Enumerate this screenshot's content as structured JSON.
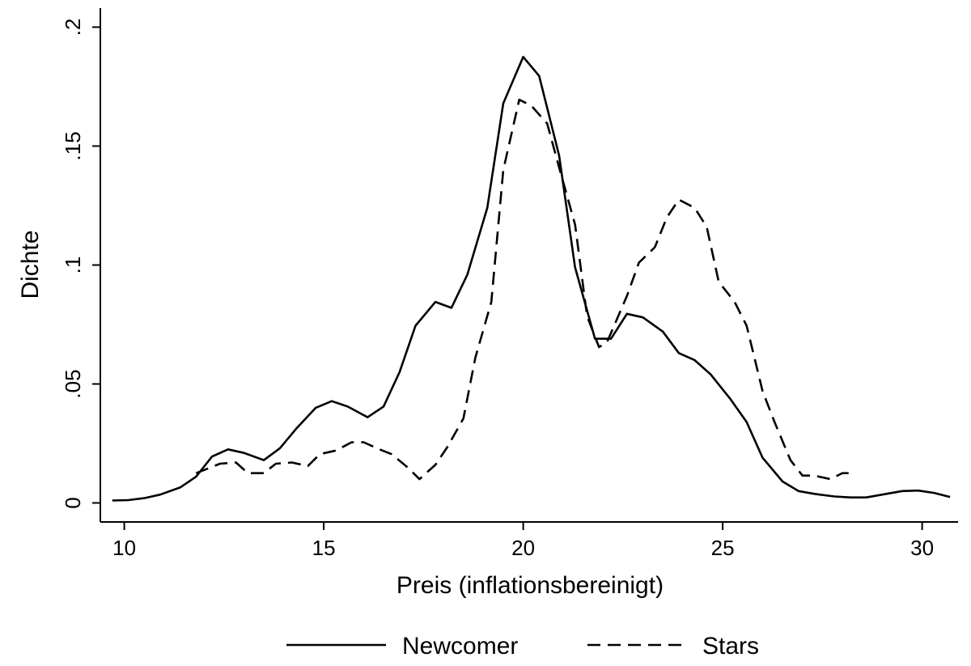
{
  "chart_data": {
    "type": "line",
    "xlabel": "Preis (inflationsbereinigt)",
    "ylabel": "Dichte",
    "xlim": [
      9.4,
      30.9
    ],
    "ylim": [
      -0.008,
      0.208
    ],
    "xticks": [
      {
        "value": 10,
        "label": "10"
      },
      {
        "value": 15,
        "label": "15"
      },
      {
        "value": 20,
        "label": "20"
      },
      {
        "value": 25,
        "label": "25"
      },
      {
        "value": 30,
        "label": "30"
      }
    ],
    "yticks": [
      {
        "value": 0,
        "label": "0"
      },
      {
        "value": 0.05,
        "label": ".05"
      },
      {
        "value": 0.1,
        "label": ".1"
      },
      {
        "value": 0.15,
        "label": ".15"
      },
      {
        "value": 0.2,
        "label": ".2"
      }
    ],
    "grid": false,
    "legend_position": "bottom",
    "series": [
      {
        "name": "Newcomer",
        "dash": "solid",
        "color": "#000000",
        "points": [
          [
            9.7,
            0.001
          ],
          [
            10.1,
            0.0012
          ],
          [
            10.5,
            0.002
          ],
          [
            10.9,
            0.0035
          ],
          [
            11.4,
            0.0065
          ],
          [
            11.8,
            0.011
          ],
          [
            12.2,
            0.0195
          ],
          [
            12.6,
            0.0225
          ],
          [
            13.0,
            0.021
          ],
          [
            13.5,
            0.018
          ],
          [
            13.9,
            0.023
          ],
          [
            14.3,
            0.031
          ],
          [
            14.8,
            0.04
          ],
          [
            15.2,
            0.0428
          ],
          [
            15.6,
            0.0405
          ],
          [
            16.1,
            0.036
          ],
          [
            16.5,
            0.0405
          ],
          [
            16.9,
            0.055
          ],
          [
            17.3,
            0.0745
          ],
          [
            17.8,
            0.0845
          ],
          [
            18.2,
            0.082
          ],
          [
            18.6,
            0.096
          ],
          [
            19.1,
            0.124
          ],
          [
            19.5,
            0.168
          ],
          [
            20.0,
            0.1875
          ],
          [
            20.4,
            0.1795
          ],
          [
            20.9,
            0.146
          ],
          [
            21.3,
            0.099
          ],
          [
            21.8,
            0.069
          ],
          [
            22.2,
            0.069
          ],
          [
            22.6,
            0.0795
          ],
          [
            23.0,
            0.078
          ],
          [
            23.5,
            0.072
          ],
          [
            23.9,
            0.063
          ],
          [
            24.3,
            0.06
          ],
          [
            24.7,
            0.054
          ],
          [
            25.2,
            0.0435
          ],
          [
            25.6,
            0.034
          ],
          [
            26.0,
            0.019
          ],
          [
            26.5,
            0.009
          ],
          [
            26.9,
            0.005
          ],
          [
            27.3,
            0.0038
          ],
          [
            27.8,
            0.0027
          ],
          [
            28.2,
            0.0023
          ],
          [
            28.6,
            0.0023
          ],
          [
            29.1,
            0.0038
          ],
          [
            29.5,
            0.005
          ],
          [
            29.9,
            0.0052
          ],
          [
            30.3,
            0.0042
          ],
          [
            30.7,
            0.0025
          ]
        ]
      },
      {
        "name": "Stars",
        "dash": "dashed",
        "color": "#000000",
        "points": [
          [
            11.8,
            0.0125
          ],
          [
            12.1,
            0.0145
          ],
          [
            12.4,
            0.0165
          ],
          [
            12.8,
            0.017
          ],
          [
            13.1,
            0.0125
          ],
          [
            13.5,
            0.0125
          ],
          [
            13.8,
            0.0165
          ],
          [
            14.2,
            0.017
          ],
          [
            14.6,
            0.0155
          ],
          [
            14.9,
            0.0205
          ],
          [
            15.3,
            0.022
          ],
          [
            15.7,
            0.0255
          ],
          [
            16.0,
            0.0255
          ],
          [
            16.4,
            0.0225
          ],
          [
            16.7,
            0.0205
          ],
          [
            17.1,
            0.015
          ],
          [
            17.4,
            0.01
          ],
          [
            17.8,
            0.016
          ],
          [
            18.1,
            0.0235
          ],
          [
            18.5,
            0.0355
          ],
          [
            18.8,
            0.061
          ],
          [
            19.2,
            0.0845
          ],
          [
            19.5,
            0.14
          ],
          [
            19.9,
            0.1695
          ],
          [
            20.2,
            0.167
          ],
          [
            20.6,
            0.1595
          ],
          [
            20.9,
            0.141
          ],
          [
            21.3,
            0.117
          ],
          [
            21.6,
            0.0785
          ],
          [
            21.9,
            0.0655
          ],
          [
            22.1,
            0.0675
          ],
          [
            22.6,
            0.087
          ],
          [
            22.9,
            0.101
          ],
          [
            23.3,
            0.1075
          ],
          [
            23.6,
            0.12
          ],
          [
            23.9,
            0.1275
          ],
          [
            24.3,
            0.124
          ],
          [
            24.6,
            0.116
          ],
          [
            24.9,
            0.093
          ],
          [
            25.3,
            0.0845
          ],
          [
            25.6,
            0.0745
          ],
          [
            26.0,
            0.047
          ],
          [
            26.3,
            0.034
          ],
          [
            26.7,
            0.018
          ],
          [
            27.0,
            0.0115
          ],
          [
            27.3,
            0.0115
          ],
          [
            27.7,
            0.01
          ],
          [
            28.0,
            0.0125
          ],
          [
            28.2,
            0.0125
          ]
        ]
      }
    ]
  }
}
